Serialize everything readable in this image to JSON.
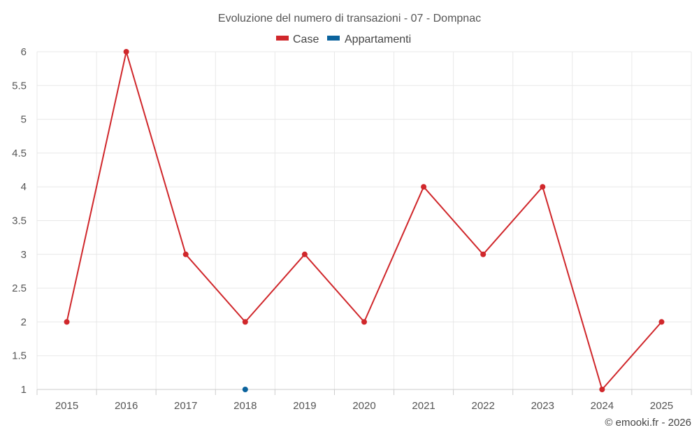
{
  "chart_data": {
    "type": "line",
    "title": "Evoluzione del numero di transazioni - 07 - Dompnac",
    "categories": [
      "2015",
      "2016",
      "2017",
      "2018",
      "2019",
      "2020",
      "2021",
      "2022",
      "2023",
      "2024",
      "2025"
    ],
    "series": [
      {
        "name": "Case",
        "color": "#d0272b",
        "values": [
          2,
          6,
          3,
          2,
          3,
          2,
          4,
          3,
          4,
          1,
          2
        ]
      },
      {
        "name": "Appartamenti",
        "color": "#0b639d",
        "values": [
          null,
          null,
          null,
          1,
          null,
          null,
          null,
          null,
          null,
          null,
          null
        ]
      }
    ],
    "ylim": [
      1,
      6
    ],
    "yticks": [
      "1",
      "1.5",
      "2",
      "2.5",
      "3",
      "3.5",
      "4",
      "4.5",
      "5",
      "5.5",
      "6"
    ],
    "grid": true,
    "legend_position": "top-center"
  },
  "credit": "© emooki.fr - 2026"
}
